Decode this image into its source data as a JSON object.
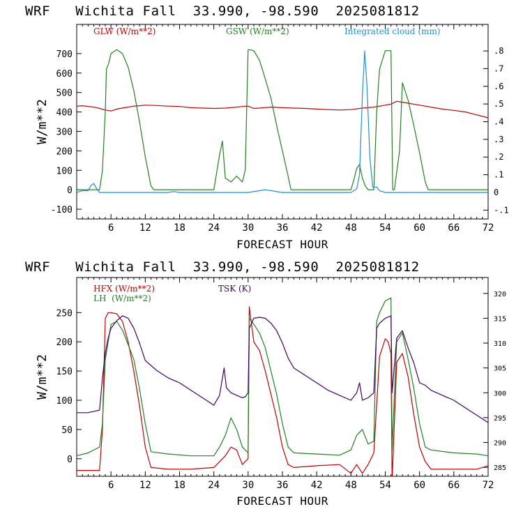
{
  "colors": {
    "glw": "#c00000",
    "gsw": "#208020",
    "cloud": "#1e8fd0",
    "hfx": "#c00000",
    "lh": "#208020",
    "tsk": "#400060",
    "axis": "#000000"
  },
  "chart_data": [
    {
      "type": "line",
      "title": "WRF   Wichita Fall  33.990, -98.590  2025081812",
      "xlabel": "FORECAST HOUR",
      "ylabel": "W/m**2",
      "xlim": [
        0,
        72
      ],
      "ylim": [
        -150,
        850
      ],
      "y2lim": [
        -0.15,
        0.95
      ],
      "xticks": [
        6,
        12,
        18,
        24,
        30,
        36,
        42,
        48,
        54,
        60,
        66,
        72
      ],
      "yticks": [
        -100,
        0,
        100,
        200,
        300,
        400,
        500,
        600,
        700
      ],
      "y2ticks": [
        -0.1,
        0,
        0.1,
        0.2,
        0.3,
        0.4,
        0.5,
        0.6,
        0.7,
        0.8
      ],
      "xtick_labels": [
        "6",
        "12",
        "18",
        "24",
        "30",
        "36",
        "42",
        "48",
        "54",
        "60",
        "66",
        "72"
      ],
      "ytick_labels": [
        "-100",
        "0",
        "100",
        "200",
        "300",
        "400",
        "500",
        "600",
        "700"
      ],
      "y2tick_labels": [
        "-.1",
        "0",
        ".1",
        ".2",
        ".3",
        ".4",
        ".5",
        ".6",
        ".7",
        ".8"
      ],
      "grid": false,
      "legend": "top",
      "series": [
        {
          "name": "GLW (W/m**2)",
          "axis": "left",
          "x": [
            0,
            1,
            2,
            3,
            4,
            5,
            6,
            7,
            8,
            9,
            10,
            11,
            12,
            14,
            16,
            18,
            20,
            22,
            24,
            26,
            28,
            29,
            30,
            31,
            32,
            34,
            36,
            38,
            40,
            42,
            44,
            46,
            48,
            50,
            52,
            54,
            55,
            56,
            57,
            58,
            60,
            62,
            64,
            66,
            68,
            70,
            72
          ],
          "y": [
            430,
            432,
            428,
            425,
            418,
            410,
            405,
            415,
            420,
            425,
            430,
            432,
            435,
            433,
            430,
            428,
            422,
            420,
            418,
            420,
            425,
            428,
            430,
            418,
            420,
            425,
            422,
            420,
            418,
            415,
            412,
            410,
            412,
            420,
            425,
            435,
            440,
            455,
            450,
            445,
            435,
            425,
            415,
            408,
            400,
            385,
            370
          ]
        },
        {
          "name": "GSW (W/m**2)",
          "axis": "left",
          "x": [
            0,
            4,
            4.5,
            5,
            5.2,
            5.6,
            6,
            7,
            8,
            9,
            10,
            11,
            12,
            13,
            13.5,
            24,
            24.5,
            25,
            25.5,
            26,
            27,
            28,
            29,
            29.5,
            30,
            30.2,
            31,
            32,
            33,
            34,
            35,
            36,
            37,
            37.5,
            48,
            48.5,
            49,
            49.5,
            50,
            50.5,
            51,
            52,
            52.5,
            53,
            54,
            55,
            55.3,
            55.6,
            56.5,
            57,
            58,
            59,
            60,
            61,
            61.5,
            72
          ],
          "y": [
            0,
            0,
            100,
            400,
            620,
            650,
            700,
            720,
            700,
            630,
            510,
            350,
            170,
            20,
            0,
            0,
            90,
            180,
            250,
            60,
            40,
            70,
            40,
            100,
            720,
            720,
            715,
            665,
            570,
            470,
            330,
            200,
            70,
            0,
            0,
            50,
            110,
            130,
            60,
            20,
            0,
            0,
            400,
            620,
            715,
            715,
            0,
            0,
            200,
            550,
            460,
            330,
            190,
            40,
            0,
            0
          ]
        },
        {
          "name": "Integrated cloud (mm)",
          "axis": "right",
          "x": [
            0,
            1,
            2,
            2.5,
            3,
            3.5,
            4,
            16,
            17,
            18,
            30,
            32,
            33,
            34,
            36,
            48,
            49,
            49.5,
            50,
            50.4,
            50.8,
            51.3,
            51.8,
            52.5,
            53,
            54,
            72
          ],
          "y": [
            0,
            0.01,
            0.01,
            0.04,
            0.05,
            0.02,
            0,
            0,
            0.005,
            0,
            0,
            0.01,
            0.015,
            0.01,
            0,
            0,
            0.02,
            0.1,
            0.55,
            0.8,
            0.6,
            0.2,
            0.03,
            0.03,
            0.01,
            0,
            0
          ]
        }
      ]
    },
    {
      "type": "line",
      "title": "WRF   Wichita Fall  33.990, -98.590  2025081812",
      "xlabel": "FORECAST HOUR",
      "ylabel": "W/m**2",
      "xlim": [
        0,
        72
      ],
      "ylim": [
        -30,
        310
      ],
      "y2lim": [
        283.2,
        323.2
      ],
      "xticks": [
        6,
        12,
        18,
        24,
        30,
        36,
        42,
        48,
        54,
        60,
        66,
        72
      ],
      "yticks": [
        0,
        50,
        100,
        150,
        200,
        250
      ],
      "y2ticks": [
        285,
        290,
        295,
        300,
        305,
        310,
        315,
        320
      ],
      "xtick_labels": [
        "6",
        "12",
        "18",
        "24",
        "30",
        "36",
        "42",
        "48",
        "54",
        "60",
        "66",
        "72"
      ],
      "ytick_labels": [
        "0",
        "50",
        "100",
        "150",
        "200",
        "250"
      ],
      "y2tick_labels": [
        "285",
        "290",
        "295",
        "300",
        "305",
        "310",
        "315",
        "320"
      ],
      "grid": false,
      "legend": "top-left",
      "series": [
        {
          "name": "HFX (W/m**2)",
          "axis": "left",
          "x": [
            0,
            2,
            4,
            4.5,
            5,
            5.5,
            6,
            7,
            8,
            9,
            10,
            11,
            12,
            13,
            16,
            20,
            24,
            26,
            27,
            28,
            29,
            30,
            30.2,
            31,
            32,
            33,
            34,
            35,
            36,
            37,
            38,
            42,
            46,
            48,
            49,
            50,
            51,
            52,
            53,
            54,
            54.5,
            55,
            55.2,
            56,
            57,
            58,
            59,
            60,
            61,
            62,
            66,
            70,
            72
          ],
          "y": [
            -20,
            -20,
            -20,
            50,
            240,
            250,
            250,
            248,
            235,
            200,
            150,
            90,
            20,
            -15,
            -18,
            -18,
            -15,
            5,
            20,
            15,
            -10,
            0,
            260,
            200,
            185,
            150,
            110,
            70,
            20,
            -10,
            -15,
            -12,
            -10,
            -25,
            -10,
            -25,
            -10,
            10,
            175,
            205,
            200,
            180,
            -40,
            165,
            180,
            140,
            75,
            20,
            -5,
            -18,
            -18,
            -18,
            -12
          ]
        },
        {
          "name": "LH  (W/m**2)",
          "axis": "left",
          "x": [
            0,
            2,
            4,
            4.5,
            5,
            5.5,
            6,
            7,
            8,
            9,
            10,
            11,
            12,
            13,
            16,
            20,
            24,
            25,
            26,
            27,
            28,
            29,
            30,
            30.2,
            31,
            32,
            33,
            34,
            35,
            36,
            37,
            38,
            42,
            46,
            48,
            49,
            50,
            51,
            52,
            52.5,
            53,
            54,
            55,
            55.2,
            56,
            57,
            58,
            59,
            60,
            61,
            62,
            66,
            70,
            72
          ],
          "y": [
            5,
            10,
            20,
            60,
            170,
            200,
            230,
            235,
            220,
            195,
            170,
            120,
            60,
            12,
            8,
            5,
            5,
            20,
            40,
            70,
            50,
            20,
            10,
            240,
            230,
            215,
            190,
            150,
            110,
            60,
            20,
            10,
            8,
            6,
            15,
            40,
            50,
            25,
            30,
            235,
            250,
            270,
            275,
            15,
            200,
            215,
            170,
            120,
            60,
            20,
            15,
            10,
            8,
            5
          ]
        },
        {
          "name": "TSK (K)",
          "axis": "right",
          "x": [
            0,
            2,
            4,
            4.5,
            5,
            5.5,
            6,
            7,
            8,
            9,
            10,
            11,
            12,
            14,
            16,
            18,
            20,
            22,
            24,
            25,
            25.8,
            26.2,
            27,
            28,
            29,
            29.5,
            30,
            30.2,
            31,
            32,
            33,
            34,
            35,
            36,
            37,
            38,
            40,
            42,
            44,
            46,
            48,
            49,
            49.5,
            50,
            51,
            52,
            52.5,
            53,
            54,
            55,
            55.2,
            56,
            57,
            58,
            59,
            60,
            61,
            62,
            64,
            66,
            68,
            70,
            72
          ],
          "y": [
            296,
            296,
            296.5,
            303,
            308,
            311,
            313,
            314.5,
            315.5,
            315,
            313,
            310,
            306.5,
            304.5,
            303,
            302,
            300.5,
            299,
            297.5,
            299.5,
            305,
            301,
            300,
            299.5,
            299,
            299.2,
            300,
            313,
            315,
            315.2,
            315,
            314,
            312.5,
            310,
            307,
            305,
            303.5,
            302,
            300.5,
            299.5,
            298.5,
            300,
            302,
            298.5,
            299,
            300,
            313,
            314,
            315,
            315.5,
            300,
            311,
            312.5,
            309,
            306,
            302,
            301.5,
            300.5,
            299.5,
            298.5,
            297,
            295.5,
            294
          ]
        }
      ]
    }
  ]
}
